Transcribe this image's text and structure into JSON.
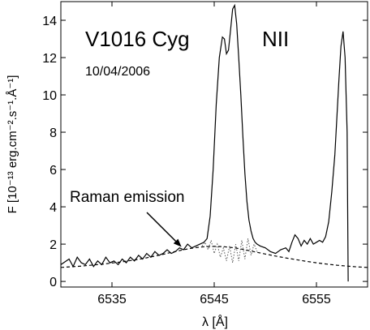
{
  "chart_data": {
    "type": "line",
    "title": "V1016 Cyg",
    "subtitle": "10/04/2006",
    "line_label": "NII",
    "xlabel": "λ  [Å]",
    "ylabel": "F  [10⁻¹³ erg.cm⁻².s⁻¹.Å⁻¹]",
    "xlim": [
      6530.0,
      6560.0
    ],
    "ylim": [
      -0.3,
      15.0
    ],
    "xticks": [
      6535,
      6545,
      6555
    ],
    "yticks": [
      0,
      2,
      4,
      6,
      8,
      10,
      12,
      14
    ],
    "grid": false,
    "annotations": [
      {
        "text": "Raman emission",
        "target_x": 6541.8,
        "target_y": 1.85,
        "text_x": 6530.6,
        "text_y": 4.5
      }
    ],
    "series": [
      {
        "style": "solid",
        "x": [
          6530.0,
          6530.8,
          6531.2,
          6531.6,
          6532.0,
          6532.4,
          6532.8,
          6533.2,
          6533.6,
          6534.0,
          6534.4,
          6534.8,
          6535.2,
          6535.6,
          6536.0,
          6536.4,
          6536.8,
          6537.2,
          6537.6,
          6538.0,
          6538.4,
          6538.8,
          6539.2,
          6539.6,
          6540.0,
          6540.4,
          6540.8,
          6541.2,
          6541.6,
          6542.0,
          6542.4,
          6542.8,
          6543.2,
          6543.6,
          6544.0,
          6544.3,
          6544.6,
          6544.9,
          6545.2,
          6545.5,
          6545.8,
          6546.0,
          6546.2,
          6546.4,
          6546.6,
          6546.8,
          6547.0,
          6547.2,
          6547.4,
          6547.6,
          6547.8,
          6548.0,
          6548.2,
          6548.4,
          6548.6,
          6548.8,
          6549.0,
          6549.2,
          6549.5,
          6550.0,
          6550.5,
          6551.0,
          6551.5,
          6552.0,
          6552.3,
          6552.6,
          6552.9,
          6553.2,
          6553.5,
          6553.8,
          6554.1,
          6554.4,
          6554.7,
          6555.0,
          6555.3,
          6555.6,
          6555.9,
          6556.2,
          6556.5,
          6556.8,
          6557.0,
          6557.2,
          6557.4,
          6557.6,
          6557.8,
          6558.0,
          6558.1
        ],
        "y": [
          0.9,
          1.2,
          0.8,
          1.3,
          1.0,
          0.9,
          1.2,
          0.8,
          1.1,
          0.9,
          1.3,
          1.0,
          1.1,
          0.9,
          1.2,
          1.0,
          1.3,
          1.1,
          1.4,
          1.2,
          1.5,
          1.3,
          1.6,
          1.4,
          1.5,
          1.7,
          1.5,
          1.6,
          1.8,
          1.7,
          2.0,
          1.8,
          1.9,
          2.0,
          2.1,
          2.3,
          3.5,
          6.0,
          9.5,
          12.0,
          13.1,
          13.0,
          12.2,
          12.4,
          13.5,
          14.6,
          14.8,
          13.8,
          12.0,
          10.0,
          7.8,
          5.8,
          4.3,
          3.3,
          2.7,
          2.3,
          2.1,
          2.0,
          1.9,
          1.8,
          1.6,
          1.5,
          1.7,
          1.8,
          1.6,
          2.1,
          2.5,
          2.3,
          1.9,
          2.2,
          2.0,
          2.3,
          2.0,
          2.1,
          2.2,
          2.1,
          2.4,
          3.2,
          4.8,
          6.8,
          8.8,
          10.8,
          12.6,
          13.4,
          12.0,
          8.0,
          0.0
        ]
      },
      {
        "style": "dashed",
        "x": [
          6530.0,
          6532.0,
          6534.0,
          6536.0,
          6538.0,
          6540.0,
          6541.0,
          6542.0,
          6543.0,
          6544.0,
          6545.0,
          6546.0,
          6547.0,
          6548.0,
          6549.0,
          6550.0,
          6551.0,
          6552.0,
          6553.0,
          6554.0,
          6555.0,
          6556.0,
          6557.0,
          6558.0,
          6559.0,
          6560.0
        ],
        "y": [
          0.75,
          0.82,
          0.92,
          1.05,
          1.22,
          1.45,
          1.58,
          1.7,
          1.8,
          1.86,
          1.88,
          1.86,
          1.8,
          1.7,
          1.58,
          1.47,
          1.36,
          1.26,
          1.17,
          1.08,
          1.0,
          0.93,
          0.87,
          0.82,
          0.78,
          0.75
        ]
      },
      {
        "style": "dotted",
        "x": [
          6543.8,
          6544.1,
          6544.4,
          6544.7,
          6545.0,
          6545.3,
          6545.6,
          6545.9,
          6546.2,
          6546.5,
          6546.8,
          6547.1,
          6547.4,
          6547.7,
          6548.0,
          6548.3,
          6548.6,
          6548.9,
          6549.2
        ],
        "y": [
          1.9,
          2.1,
          1.7,
          2.2,
          1.5,
          2.0,
          1.3,
          1.8,
          1.1,
          1.9,
          1.0,
          2.0,
          1.1,
          2.2,
          1.2,
          2.3,
          1.4,
          2.0,
          1.6
        ]
      }
    ]
  }
}
